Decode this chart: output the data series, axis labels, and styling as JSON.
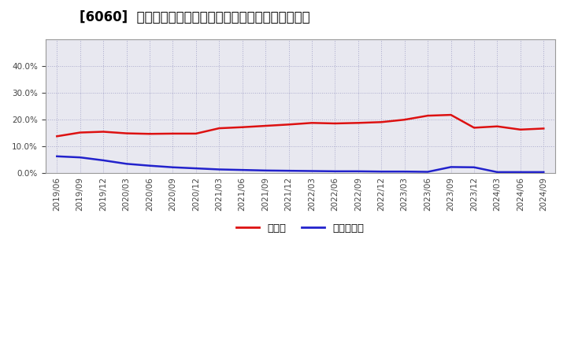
{
  "title": "[6060]  現預金、有利子負債の総資産に対する比率の推移",
  "x_labels": [
    "2019/06",
    "2019/09",
    "2019/12",
    "2020/03",
    "2020/06",
    "2020/09",
    "2020/12",
    "2021/03",
    "2021/06",
    "2021/09",
    "2021/12",
    "2022/03",
    "2022/06",
    "2022/09",
    "2022/12",
    "2023/03",
    "2023/06",
    "2023/09",
    "2023/12",
    "2024/03",
    "2024/06",
    "2024/09"
  ],
  "cash_values": [
    0.138,
    0.152,
    0.155,
    0.149,
    0.147,
    0.148,
    0.148,
    0.168,
    0.172,
    0.177,
    0.182,
    0.188,
    0.186,
    0.188,
    0.191,
    0.2,
    0.215,
    0.218,
    0.17,
    0.175,
    0.163,
    0.167
  ],
  "debt_values": [
    0.063,
    0.059,
    0.048,
    0.035,
    0.028,
    0.022,
    0.018,
    0.014,
    0.012,
    0.01,
    0.009,
    0.008,
    0.007,
    0.007,
    0.006,
    0.006,
    0.005,
    0.023,
    0.022,
    0.004,
    0.004,
    0.004
  ],
  "cash_color": "#dd1111",
  "debt_color": "#2222cc",
  "background_color": "#ffffff",
  "plot_bg_color": "#e8e8f0",
  "grid_color": "#aaaacc",
  "ylim": [
    0.0,
    0.5
  ],
  "yticks": [
    0.0,
    0.1,
    0.2,
    0.3,
    0.4
  ],
  "legend_cash": "現預金",
  "legend_debt": "有利子負債",
  "title_fontsize": 12,
  "tick_fontsize": 7.5
}
